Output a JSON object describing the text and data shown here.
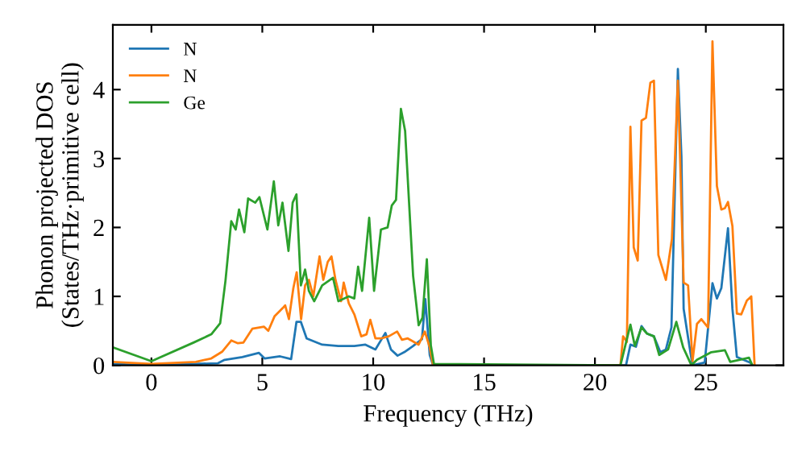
{
  "chart_data": {
    "type": "line",
    "xlabel": "Frequency (THz)",
    "ylabel": "Phonon projected DOS\n(States/THz·primitive cell)",
    "xlim": [
      -1.74,
      28.5
    ],
    "ylim": [
      0,
      4.94
    ],
    "xticks": [
      0,
      5,
      10,
      15,
      20,
      25
    ],
    "yticks": [
      0,
      1,
      2,
      3,
      4
    ],
    "legend": "top left",
    "grid": false,
    "line_style": "solid",
    "marker": "none",
    "series": [
      {
        "name": "N",
        "color": "#1f77b4",
        "x": [
          -1.74,
          0,
          3.0,
          3.3,
          4.1,
          4.85,
          5.1,
          5.8,
          6.3,
          6.54,
          6.74,
          7.0,
          7.7,
          8.43,
          9.15,
          9.65,
          10.1,
          10.55,
          10.8,
          11.1,
          11.45,
          11.8,
          12.2,
          12.35,
          12.55,
          12.7,
          21.4,
          21.6,
          21.85,
          22.1,
          22.35,
          22.66,
          22.95,
          23.2,
          23.45,
          23.74,
          23.9,
          24.0,
          24.25,
          24.4,
          24.95,
          25.3,
          25.5,
          25.7,
          26.0,
          26.2,
          26.4,
          27.0,
          27.1
        ],
        "values": [
          0.02,
          0.0,
          0.03,
          0.08,
          0.12,
          0.18,
          0.1,
          0.13,
          0.09,
          0.63,
          0.63,
          0.39,
          0.3,
          0.28,
          0.28,
          0.3,
          0.23,
          0.47,
          0.23,
          0.14,
          0.2,
          0.28,
          0.38,
          0.96,
          0.15,
          0,
          0,
          0.3,
          0.27,
          0.57,
          0.46,
          0.42,
          0.19,
          0.23,
          0.55,
          4.3,
          3.03,
          0.82,
          0.3,
          0,
          0.04,
          1.19,
          0.97,
          1.12,
          1.99,
          0.82,
          0.12,
          0.04,
          0
        ]
      },
      {
        "name": "N",
        "color": "#ff7f0e",
        "x": [
          -1.74,
          0,
          2.0,
          2.7,
          3.2,
          3.6,
          3.9,
          4.15,
          4.55,
          5.08,
          5.27,
          5.55,
          5.92,
          6.03,
          6.2,
          6.4,
          6.55,
          6.75,
          6.93,
          7.1,
          7.3,
          7.58,
          7.75,
          7.95,
          8.12,
          8.3,
          8.55,
          8.67,
          8.9,
          9.15,
          9.46,
          9.7,
          9.87,
          10.1,
          10.35,
          10.7,
          11.08,
          11.3,
          11.56,
          12.05,
          12.33,
          12.55,
          12.7,
          21.15,
          21.27,
          21.44,
          21.6,
          21.75,
          21.93,
          22.1,
          22.3,
          22.5,
          22.66,
          22.86,
          23.2,
          23.47,
          23.74,
          24.0,
          24.2,
          24.4,
          24.6,
          24.8,
          25.1,
          25.3,
          25.5,
          25.7,
          25.86,
          26.0,
          26.2,
          26.4,
          26.6,
          26.85,
          27.05,
          27.2
        ],
        "values": [
          0.05,
          0.02,
          0.05,
          0.1,
          0.2,
          0.36,
          0.32,
          0.33,
          0.53,
          0.56,
          0.5,
          0.71,
          0.83,
          0.87,
          0.67,
          1.12,
          1.35,
          0.67,
          1.16,
          1.24,
          1.0,
          1.58,
          1.24,
          1.5,
          1.58,
          1.24,
          0.93,
          1.2,
          0.9,
          0.74,
          0.42,
          0.45,
          0.66,
          0.39,
          0.39,
          0.42,
          0.49,
          0.37,
          0.39,
          0.3,
          0.49,
          0.26,
          0,
          0,
          0.42,
          0.34,
          3.46,
          1.71,
          1.52,
          3.55,
          3.59,
          4.1,
          4.13,
          1.6,
          1.24,
          1.83,
          4.13,
          1.2,
          1.16,
          0.06,
          0.6,
          0.67,
          0.55,
          4.7,
          2.6,
          2.26,
          2.28,
          2.37,
          2.02,
          0.75,
          0.74,
          0.94,
          1.0,
          0
        ]
      },
      {
        "name": "Ge",
        "color": "#2ca02c",
        "x": [
          -1.74,
          0,
          1.9,
          2.7,
          3.1,
          3.34,
          3.6,
          3.8,
          3.95,
          4.19,
          4.36,
          4.68,
          4.87,
          5.23,
          5.52,
          5.72,
          5.91,
          6.18,
          6.37,
          6.54,
          6.74,
          6.93,
          7.1,
          7.34,
          7.7,
          8.19,
          8.43,
          8.9,
          9.15,
          9.32,
          9.5,
          9.82,
          10.04,
          10.35,
          10.65,
          10.84,
          11.03,
          11.25,
          11.44,
          11.8,
          12.05,
          12.22,
          12.42,
          12.6,
          12.74,
          21.15,
          21.6,
          21.8,
          22.1,
          22.35,
          22.66,
          22.9,
          23.3,
          23.67,
          23.98,
          24.35,
          24.6,
          25.25,
          25.86,
          26.1,
          26.95,
          27.1
        ],
        "values": [
          0.26,
          0.06,
          0.33,
          0.45,
          0.61,
          1.23,
          2.09,
          1.97,
          2.26,
          1.93,
          2.42,
          2.36,
          2.44,
          1.97,
          2.67,
          2.03,
          2.36,
          1.66,
          2.36,
          2.48,
          1.16,
          1.39,
          1.08,
          0.93,
          1.16,
          1.27,
          0.93,
          1.0,
          0.97,
          1.43,
          1.08,
          2.14,
          1.08,
          1.97,
          2.0,
          2.32,
          2.4,
          3.72,
          3.4,
          1.3,
          0.58,
          0.69,
          1.54,
          0.29,
          0.02,
          0,
          0.59,
          0.28,
          0.55,
          0.46,
          0.42,
          0.15,
          0.23,
          0.63,
          0.26,
          0,
          0.08,
          0.19,
          0.22,
          0.05,
          0.11,
          0
        ]
      }
    ]
  }
}
